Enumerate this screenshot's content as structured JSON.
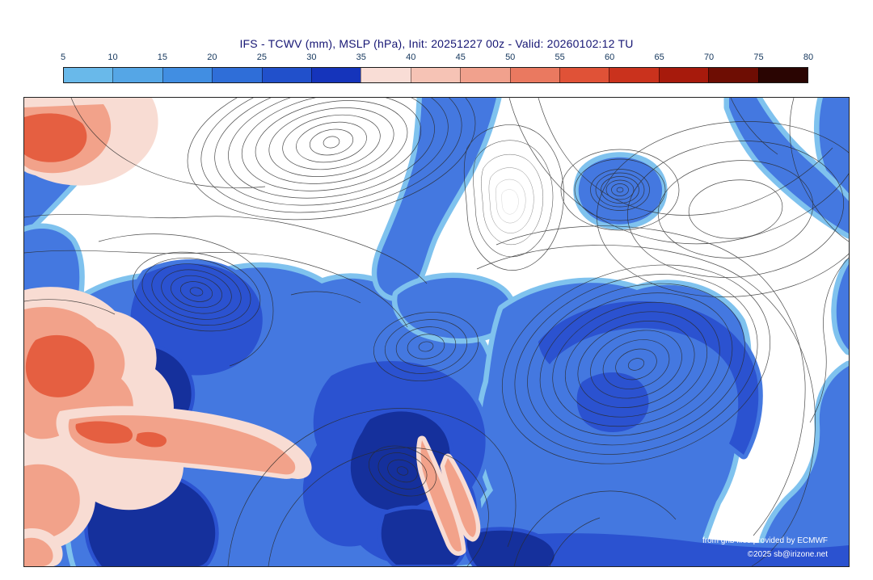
{
  "title": "IFS - TCWV (mm), MSLP (hPa), Init: 20251227 00z - Valid: 20260102:12 TU",
  "colorbar": {
    "unit_ticks": [
      "5",
      "10",
      "15",
      "20",
      "25",
      "30",
      "35",
      "40",
      "45",
      "50",
      "55",
      "60",
      "65",
      "70",
      "75",
      "80"
    ],
    "segment_colors": [
      "#69b9ea",
      "#55a6e6",
      "#418ee2",
      "#2f6ed8",
      "#2150cb",
      "#1534bb",
      "#f9ddd6",
      "#f6c3b5",
      "#f1a18d",
      "#ea7960",
      "#e05237",
      "#ca321d",
      "#a71a0c",
      "#6e0d03",
      "#2a0502"
    ]
  },
  "map": {
    "credits": {
      "line1": "from grib files provided by ECMWF",
      "line2": "©2025 sb@irizone.net"
    },
    "fill_colors": {
      "light_blue": "#7fc2ee",
      "medium_blue": "#4478e0",
      "dark_blue": "#2b52d0",
      "navy": "#15309c",
      "pale_pink": "#f8dcd3",
      "salmon": "#f2a28a",
      "red": "#e55f41"
    },
    "contour_color": "#2b2b2b"
  }
}
